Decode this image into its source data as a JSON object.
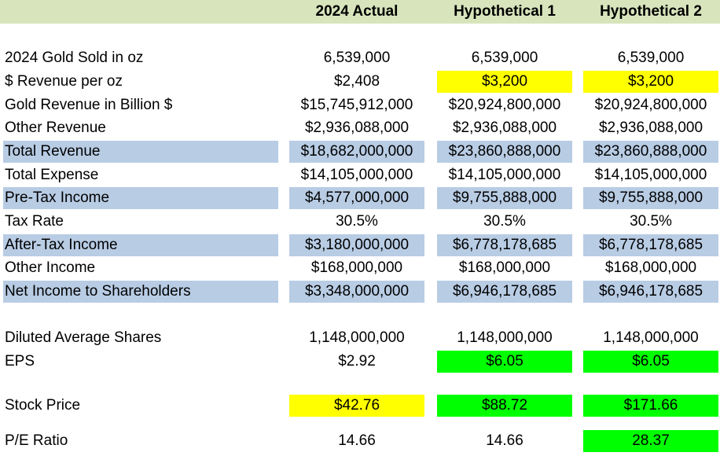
{
  "header": {
    "col1": "2024 Actual",
    "col2": "Hypothetical 1",
    "col3": "Hypothetical 2"
  },
  "rows": [
    {
      "label": "2024 Gold Sold in oz",
      "c1": "6,539,000",
      "c2": "6,539,000",
      "c3": "6,539,000"
    },
    {
      "label": "$ Revenue per oz",
      "c1": "$2,408",
      "c2": "$3,200",
      "c3": "$3,200"
    },
    {
      "label": "Gold Revenue in Billion $",
      "c1": "$15,745,912,000",
      "c2": "$20,924,800,000",
      "c3": "$20,924,800,000"
    },
    {
      "label": "Other Revenue",
      "c1": "$2,936,088,000",
      "c2": "$2,936,088,000",
      "c3": "$2,936,088,000"
    },
    {
      "label": "Total Revenue",
      "c1": "$18,682,000,000",
      "c2": "$23,860,888,000",
      "c3": "$23,860,888,000"
    },
    {
      "label": "Total Expense",
      "c1": "$14,105,000,000",
      "c2": "$14,105,000,000",
      "c3": "$14,105,000,000"
    },
    {
      "label": "Pre-Tax Income",
      "c1": "$4,577,000,000",
      "c2": "$9,755,888,000",
      "c3": "$9,755,888,000"
    },
    {
      "label": "Tax Rate",
      "c1": "30.5%",
      "c2": "30.5%",
      "c3": "30.5%"
    },
    {
      "label": "After-Tax Income",
      "c1": "$3,180,000,000",
      "c2": "$6,778,178,685",
      "c3": "$6,778,178,685"
    },
    {
      "label": "Other Income",
      "c1": "$168,000,000",
      "c2": "$168,000,000",
      "c3": "$168,000,000"
    },
    {
      "label": "Net Income to Shareholders",
      "c1": "$3,348,000,000",
      "c2": "$6,946,178,685",
      "c3": "$6,946,178,685"
    },
    {
      "label": "Diluted Average Shares",
      "c1": "1,148,000,000",
      "c2": "1,148,000,000",
      "c3": "1,148,000,000"
    },
    {
      "label": "EPS",
      "c1": "$2.92",
      "c2": "$6.05",
      "c3": "$6.05"
    },
    {
      "label": "Stock Price",
      "c1": "$42.76",
      "c2": "$88.72",
      "c3": "$171.66"
    },
    {
      "label": "P/E Ratio",
      "c1": "14.66",
      "c2": "14.66",
      "c3": "28.37"
    }
  ],
  "colors": {
    "header_band": "#d8e4bc",
    "row_highlight": "#b8cce4",
    "input_yellow": "#ffff00",
    "result_green": "#00ff00"
  }
}
